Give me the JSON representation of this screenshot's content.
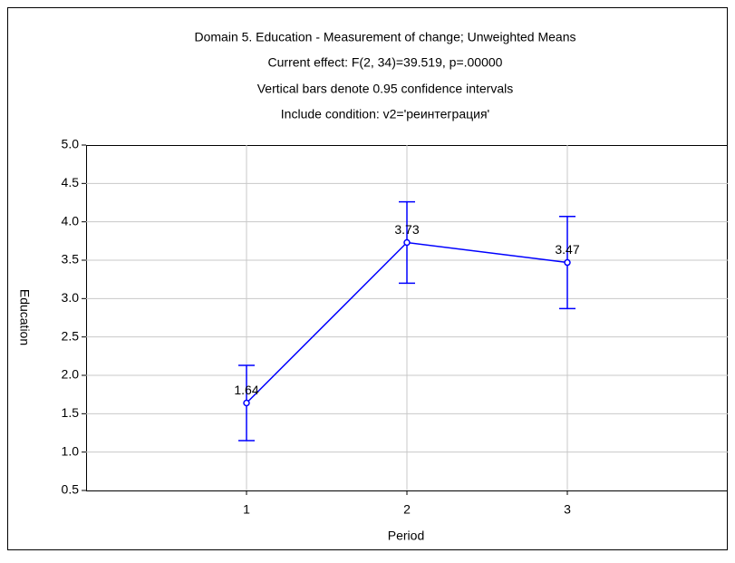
{
  "chart_data": {
    "type": "line",
    "titles": [
      "Domain 5. Education - Measurement of change; Unweighted Means",
      "Current effect: F(2, 34)=39.519, p=.00000",
      "Vertical bars denote 0.95 confidence intervals",
      "Include condition: v2='реинтеграция'"
    ],
    "x_label": "Period",
    "y_label": "Education",
    "x": [
      1,
      2,
      3
    ],
    "values": [
      1.64,
      3.73,
      3.47
    ],
    "errors": [
      0.49,
      0.53,
      0.6
    ],
    "color": "#0000ff",
    "xlim": [
      0,
      4
    ],
    "xticks": [
      1,
      2,
      3
    ],
    "ylim": [
      0.5,
      5
    ],
    "yticks": [
      0.5,
      {
        "value": 1,
        "label": "1.0"
      },
      1.5,
      {
        "value": 2,
        "label": "2.0"
      },
      2.5,
      {
        "value": 3,
        "label": "3.0"
      },
      3.5,
      {
        "value": 4,
        "label": "4.0"
      },
      4.5,
      {
        "value": 5,
        "label": "5.0"
      }
    ],
    "grid": true
  }
}
